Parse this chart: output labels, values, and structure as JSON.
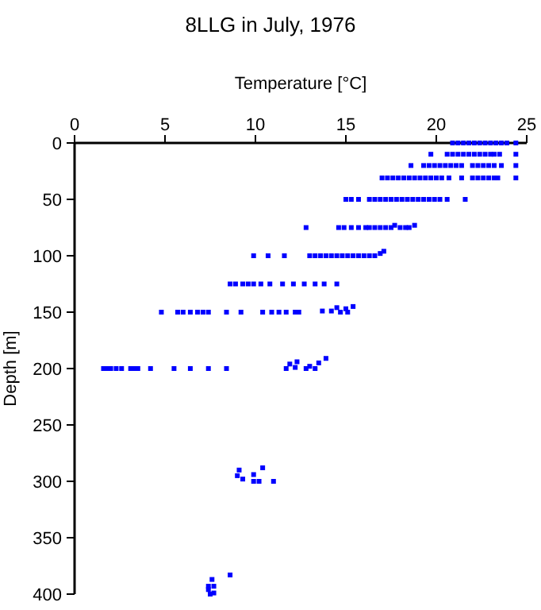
{
  "chart_data": {
    "type": "scatter",
    "title": "8LLG in July, 1976",
    "xlabel": "Temperature [°C]",
    "ylabel": "Depth [m]",
    "xlim": [
      0,
      25
    ],
    "xticks": [
      0,
      5,
      10,
      15,
      20,
      25
    ],
    "ylim": [
      400,
      0
    ],
    "yticks": [
      0,
      50,
      100,
      150,
      200,
      250,
      300,
      350,
      400
    ],
    "marker": "square",
    "grid": false,
    "series": [
      {
        "color": "#0000ff",
        "x": [
          20.9,
          21.2,
          21.5,
          21.8,
          22.1,
          22.4,
          22.7,
          23.0,
          23.3,
          23.6,
          23.9,
          24.4,
          19.7,
          20.6,
          20.9,
          21.2,
          21.5,
          21.8,
          22.1,
          22.4,
          22.7,
          23.0,
          23.2,
          23.5,
          24.4,
          18.6,
          19.3,
          19.6,
          19.9,
          20.2,
          20.5,
          20.8,
          21.1,
          21.4,
          22.0,
          22.3,
          22.6,
          22.9,
          23.2,
          23.6,
          24.4,
          17.0,
          17.3,
          17.6,
          17.9,
          18.2,
          18.5,
          18.8,
          19.1,
          19.4,
          19.7,
          20.0,
          20.3,
          20.7,
          21.4,
          22.0,
          22.3,
          22.6,
          22.9,
          23.2,
          23.4,
          24.4,
          15.0,
          15.3,
          15.7,
          16.3,
          16.6,
          16.9,
          17.2,
          17.5,
          17.8,
          18.1,
          18.4,
          18.7,
          19.0,
          19.3,
          19.6,
          19.9,
          20.2,
          20.6,
          21.6,
          12.8,
          14.6,
          14.9,
          15.3,
          15.7,
          16.1,
          16.3,
          16.6,
          16.9,
          17.2,
          17.5,
          17.7,
          18.0,
          18.3,
          18.5,
          18.8,
          9.9,
          10.7,
          11.6,
          13.0,
          13.3,
          13.6,
          13.9,
          14.2,
          14.5,
          14.8,
          15.1,
          15.4,
          15.7,
          16.0,
          16.3,
          16.6,
          16.9,
          17.1,
          8.6,
          8.9,
          9.3,
          9.6,
          9.9,
          10.3,
          10.8,
          11.5,
          12.1,
          12.7,
          13.3,
          13.8,
          14.5,
          4.8,
          5.7,
          6.0,
          6.4,
          6.8,
          7.1,
          7.4,
          8.4,
          9.2,
          10.4,
          10.9,
          11.3,
          11.7,
          12.2,
          12.4,
          13.7,
          14.2,
          14.5,
          14.7,
          15.0,
          15.1,
          15.4,
          1.6,
          1.8,
          2.0,
          2.3,
          2.6,
          3.1,
          3.3,
          3.5,
          4.2,
          5.5,
          6.4,
          7.4,
          8.4,
          11.7,
          11.9,
          12.3,
          12.2,
          12.8,
          13.0,
          13.3,
          13.5,
          13.9,
          9.1,
          9.0,
          9.3,
          9.9,
          9.9,
          10.2,
          10.4,
          11.0,
          7.6,
          8.6,
          7.4,
          7.7,
          7.4,
          7.7,
          7.5
        ],
        "values": [
          0,
          0,
          0,
          0,
          0,
          0,
          0,
          0,
          0,
          0,
          0,
          0,
          10,
          10,
          10,
          10,
          10,
          10,
          10,
          10,
          10,
          10,
          10,
          10,
          10,
          20,
          20,
          20,
          20,
          20,
          20,
          20,
          20,
          20,
          20,
          20,
          20,
          20,
          20,
          20,
          20,
          31,
          31,
          31,
          31,
          31,
          31,
          31,
          31,
          31,
          31,
          31,
          31,
          31,
          31,
          31,
          31,
          31,
          31,
          31,
          31,
          31,
          50,
          50,
          50,
          50,
          50,
          50,
          50,
          50,
          50,
          50,
          50,
          50,
          50,
          50,
          50,
          50,
          50,
          50,
          50,
          75,
          75,
          75,
          75,
          75,
          75,
          75,
          75,
          75,
          75,
          75,
          73,
          75,
          75,
          75,
          73,
          100,
          100,
          100,
          100,
          100,
          100,
          100,
          100,
          100,
          100,
          100,
          100,
          100,
          100,
          100,
          100,
          98,
          96,
          125,
          125,
          125,
          125,
          125,
          125,
          125,
          125,
          125,
          125,
          125,
          125,
          125,
          150,
          150,
          150,
          150,
          150,
          150,
          150,
          150,
          150,
          150,
          150,
          150,
          150,
          150,
          150,
          149,
          149,
          146,
          150,
          147,
          150,
          145,
          200,
          200,
          200,
          200,
          200,
          200,
          200,
          200,
          200,
          200,
          200,
          200,
          200,
          200,
          196,
          194,
          199,
          200,
          198,
          200,
          195,
          191,
          290,
          295,
          298,
          294,
          300,
          300,
          288,
          300,
          387,
          383,
          393,
          393,
          396,
          399,
          400
        ]
      }
    ]
  }
}
